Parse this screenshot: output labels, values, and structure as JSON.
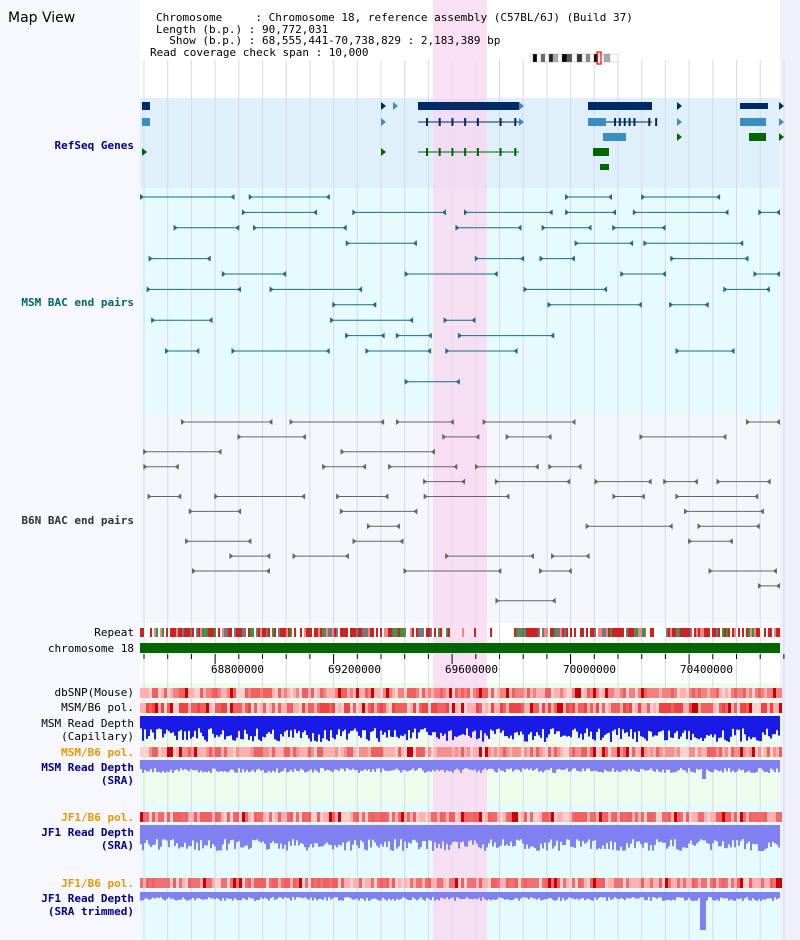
{
  "header": {
    "title": "Map View",
    "chromosome_line": "Chromosome     : Chromosome 18, reference assembly (C57BL/6J) (Build 37)",
    "length_line": "Length (b.p.) : 90,772,031",
    "show_line": "  Show (b.p.) : 68,555,441-70,738,829 : 2,183,389 bp",
    "coverage_line": "Read coverage check span : 10,000"
  },
  "tracks": {
    "refseq": "RefSeq Genes",
    "msm_bac": "MSM BAC end pairs",
    "b6n_bac": "B6N BAC end pairs",
    "repeat": "Repeat",
    "chromosome": "chromosome 18",
    "dbsnp": "dbSNP(Mouse)",
    "msm_b6_pol": "MSM/B6 pol.",
    "msm_read_depth_cap_1": "MSM Read Depth",
    "msm_read_depth_cap_2": "(Capillary)",
    "msm_b6_pol_sra": "MSM/B6 pol.",
    "msm_read_depth_sra_1": "MSM Read Depth",
    "msm_read_depth_sra_2": "(SRA)",
    "jf1_b6_pol": "JF1/B6 pol.",
    "jf1_read_depth_1": "JF1 Read Depth",
    "jf1_read_depth_2": "(SRA)",
    "jf1_b6_pol_trim": "JF1/B6 pol.",
    "jf1_read_depth_trim_1": "JF1 Read Depth",
    "jf1_read_depth_trim_2": "(SRA trimmed)"
  },
  "axis": {
    "ticks": [
      "68800000",
      "69200000",
      "69600000",
      "70000000",
      "70400000"
    ]
  },
  "colors": {
    "refseq_bg": "#dff0fb",
    "msm_bg": "#e6fbfb",
    "b6n_bg": "#f4f6fb",
    "highlight": "#f8d6f0",
    "gene_dark": "#002b66",
    "gene_mid": "#3a8fc0",
    "gene_green": "#006600",
    "msm_line": "#1f6b86",
    "b6n_line": "#666666",
    "chrom_bar": "#006600",
    "depth_blue": "#1a1ae6",
    "depth_light": "#8080f0",
    "label_blue": "#000080",
    "label_orange": "#e69900",
    "label_teal": "#006666"
  }
}
